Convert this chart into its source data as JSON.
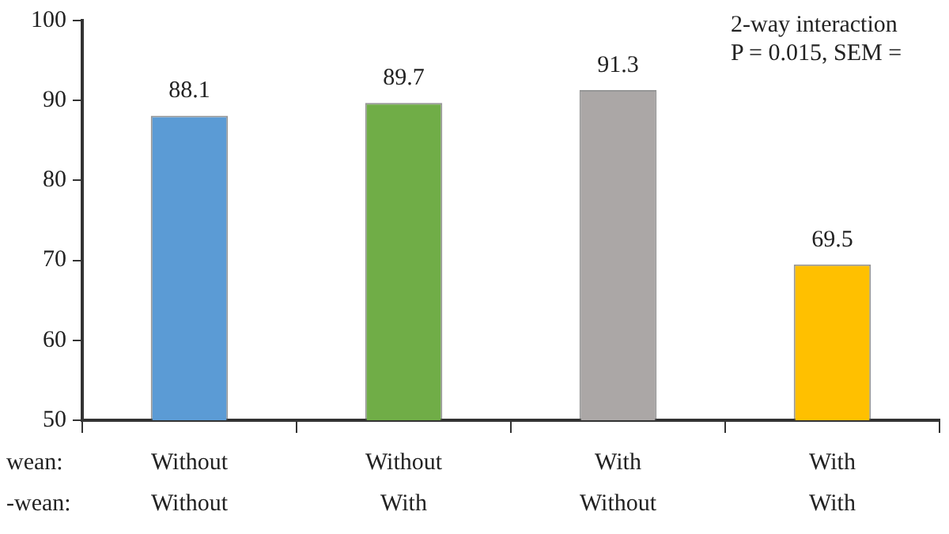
{
  "chart_data": {
    "type": "bar",
    "categories": [
      "Without\nWithout",
      "Without\nWith",
      "With\nWithout",
      "With\nWith"
    ],
    "values": [
      88.1,
      89.7,
      91.3,
      69.5
    ],
    "colors": [
      "#5b9bd5",
      "#70ad47",
      "#aba7a6",
      "#ffc000"
    ],
    "ylim": [
      50,
      100
    ],
    "yticks": [
      50,
      60,
      70,
      80,
      90,
      100
    ],
    "data_labels": true,
    "grid": false,
    "legend": false,
    "annotations": [
      "2-way interaction",
      "P = 0.015, SEM =",
      "wean:",
      "-wean:"
    ]
  }
}
